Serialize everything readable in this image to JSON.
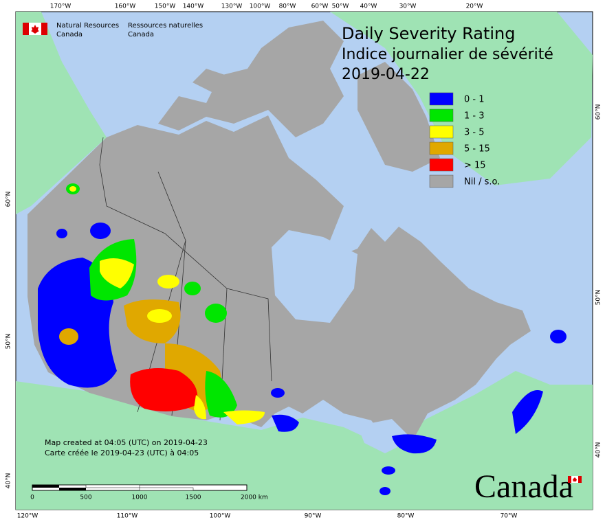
{
  "header": {
    "agency_en": [
      "Natural Resources",
      "Canada"
    ],
    "agency_fr": [
      "Ressources naturelles",
      "Canada"
    ]
  },
  "title": {
    "en": "Daily Severity Rating",
    "fr": "Indice journalier de sévérité",
    "date": "2019-04-22"
  },
  "legend": {
    "items": [
      {
        "label": "0 - 1",
        "color": "#0000ff"
      },
      {
        "label": "1 - 3",
        "color": "#00e600"
      },
      {
        "label": "3 - 5",
        "color": "#ffff00"
      },
      {
        "label": "5 - 15",
        "color": "#e0a800"
      },
      {
        "label": "> 15",
        "color": "#ff0000"
      },
      {
        "label": "Nil / s.o.",
        "color": "#a6a6a6"
      }
    ]
  },
  "graticule": {
    "top": [
      "170°W",
      "160°W",
      "150°W",
      "140°W",
      "130°W",
      "100°W",
      "80°W",
      "60°W",
      "50°W",
      "40°W",
      "30°W",
      "20°W"
    ],
    "bottom": [
      "120°W",
      "110°W",
      "100°W",
      "90°W",
      "80°W",
      "70°W"
    ],
    "left": [
      "60°N",
      "50°N",
      "40°N"
    ],
    "right": [
      "60°N",
      "50°N",
      "40°N"
    ]
  },
  "notes": [
    "Map created at 04:05 (UTC) on 2019-04-23",
    "Carte créée le 2019-04-23 (UTC) à 04:05"
  ],
  "scale_bar": [
    "0",
    "500",
    "1000",
    "1500",
    "2000 km"
  ],
  "wordmark": "Canada"
}
